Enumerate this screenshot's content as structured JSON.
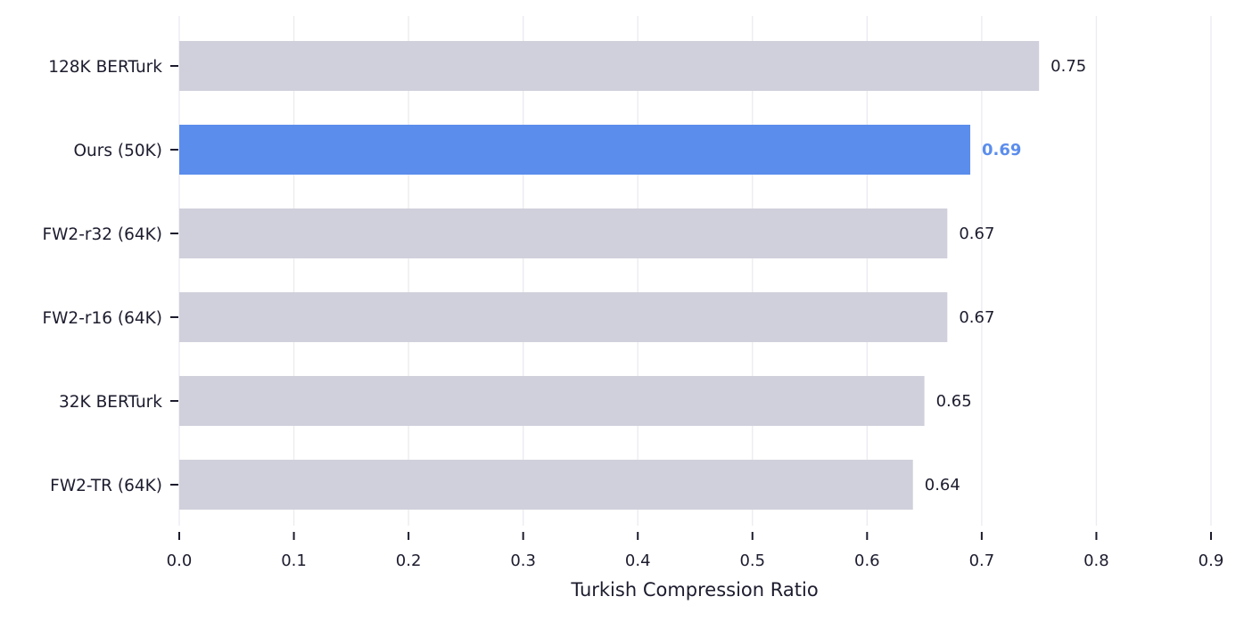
{
  "chart_data": {
    "type": "bar",
    "orientation": "horizontal",
    "title": "",
    "xlabel": "Turkish Compression Ratio",
    "ylabel": "",
    "xlim": [
      0.0,
      0.9
    ],
    "xticks": [
      "0.0",
      "0.1",
      "0.2",
      "0.3",
      "0.4",
      "0.5",
      "0.6",
      "0.7",
      "0.8",
      "0.9"
    ],
    "grid": "vertical",
    "legend": null,
    "categories": [
      "128K BERTurk",
      "Ours (50K)",
      "FW2-r32 (64K)",
      "FW2-r16 (64K)",
      "32K BERTurk",
      "FW2-TR (64K)"
    ],
    "values": [
      0.75,
      0.69,
      0.67,
      0.67,
      0.65,
      0.64
    ],
    "value_labels": [
      "0.75",
      "0.69",
      "0.67",
      "0.67",
      "0.65",
      "0.64"
    ],
    "highlight_index": 1,
    "colors": {
      "default_bar": "#d0d0dc",
      "highlight_bar": "#5b8dec",
      "highlight_label": "#5b8dec",
      "grid": "#ebebf0",
      "text": "#1c1c2e"
    }
  }
}
